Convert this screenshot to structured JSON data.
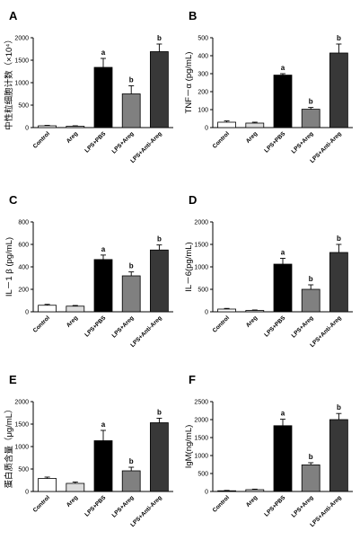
{
  "chart_data": [
    {
      "panel": "A",
      "type": "bar",
      "ylabel": "中性粒细胞计数（×10⁴）",
      "ylim": [
        0,
        2000
      ],
      "yticks": [
        0,
        500,
        1000,
        1500,
        2000
      ],
      "categories": [
        "Control",
        "Areg",
        "LPS+PBS",
        "LPS+Areg",
        "LPS+Anti-Areg"
      ],
      "values": [
        40,
        30,
        1340,
        750,
        1690
      ],
      "errors": [
        10,
        10,
        200,
        180,
        170
      ],
      "significance": [
        "",
        "",
        "a",
        "b",
        "b"
      ]
    },
    {
      "panel": "B",
      "type": "bar",
      "ylabel": "TNF－α (pg/mL)",
      "ylim": [
        0,
        500
      ],
      "yticks": [
        0,
        100,
        200,
        300,
        400,
        500
      ],
      "categories": [
        "Control",
        "Areg",
        "LPS+PBS",
        "LPS+Areg",
        "LPS+Anti-Areg"
      ],
      "values": [
        30,
        25,
        292,
        102,
        415
      ],
      "errors": [
        7,
        5,
        8,
        10,
        50
      ],
      "significance": [
        "",
        "",
        "a",
        "b",
        "b"
      ]
    },
    {
      "panel": "C",
      "type": "bar",
      "ylabel": "IL－1 β (pg/mL)",
      "ylim": [
        0,
        800
      ],
      "yticks": [
        0,
        200,
        400,
        600,
        800
      ],
      "categories": [
        "Control",
        "Areg",
        "LPS+PBS",
        "LPS+Areg",
        "LPS+Anti-Areg"
      ],
      "values": [
        58,
        50,
        465,
        320,
        550
      ],
      "errors": [
        8,
        6,
        40,
        35,
        45
      ],
      "significance": [
        "",
        "",
        "a",
        "b",
        "b"
      ]
    },
    {
      "panel": "D",
      "type": "bar",
      "ylabel": "IL－6(pg/mL)",
      "ylim": [
        0,
        2000
      ],
      "yticks": [
        0,
        500,
        1000,
        1500,
        2000
      ],
      "categories": [
        "Control",
        "Areg",
        "LPS+PBS",
        "LPS+Areg",
        "LPS+Anti-Areg"
      ],
      "values": [
        60,
        30,
        1060,
        500,
        1320
      ],
      "errors": [
        15,
        10,
        130,
        100,
        180
      ],
      "significance": [
        "",
        "",
        "a",
        "b",
        "b"
      ]
    },
    {
      "panel": "E",
      "type": "bar",
      "ylabel": "蛋白质含量（μg/mL）",
      "ylim": [
        0,
        2000
      ],
      "yticks": [
        0,
        500,
        1000,
        1500,
        2000
      ],
      "categories": [
        "Control",
        "Areg",
        "LPS+PBS",
        "LPS+Areg",
        "LPS+Anti-Areg"
      ],
      "values": [
        290,
        180,
        1130,
        460,
        1530
      ],
      "errors": [
        30,
        30,
        230,
        80,
        100
      ],
      "significance": [
        "",
        "",
        "a",
        "b",
        "b"
      ]
    },
    {
      "panel": "F",
      "type": "bar",
      "ylabel": "IgM(ng/mL)",
      "ylim": [
        0,
        2500
      ],
      "yticks": [
        0,
        500,
        1000,
        1500,
        2000,
        2500
      ],
      "categories": [
        "Control",
        "Areg",
        "LPS+PBS",
        "LPS+Areg",
        "LPS+Anti-Areg"
      ],
      "values": [
        20,
        50,
        1830,
        740,
        2000
      ],
      "errors": [
        10,
        15,
        180,
        60,
        170
      ],
      "significance": [
        "",
        "",
        "a",
        "b",
        "b"
      ]
    }
  ],
  "colors": {
    "bars": [
      "#ffffff",
      "#dcdcdc",
      "#000000",
      "#808080",
      "#383838"
    ],
    "stroke": "#000000"
  }
}
